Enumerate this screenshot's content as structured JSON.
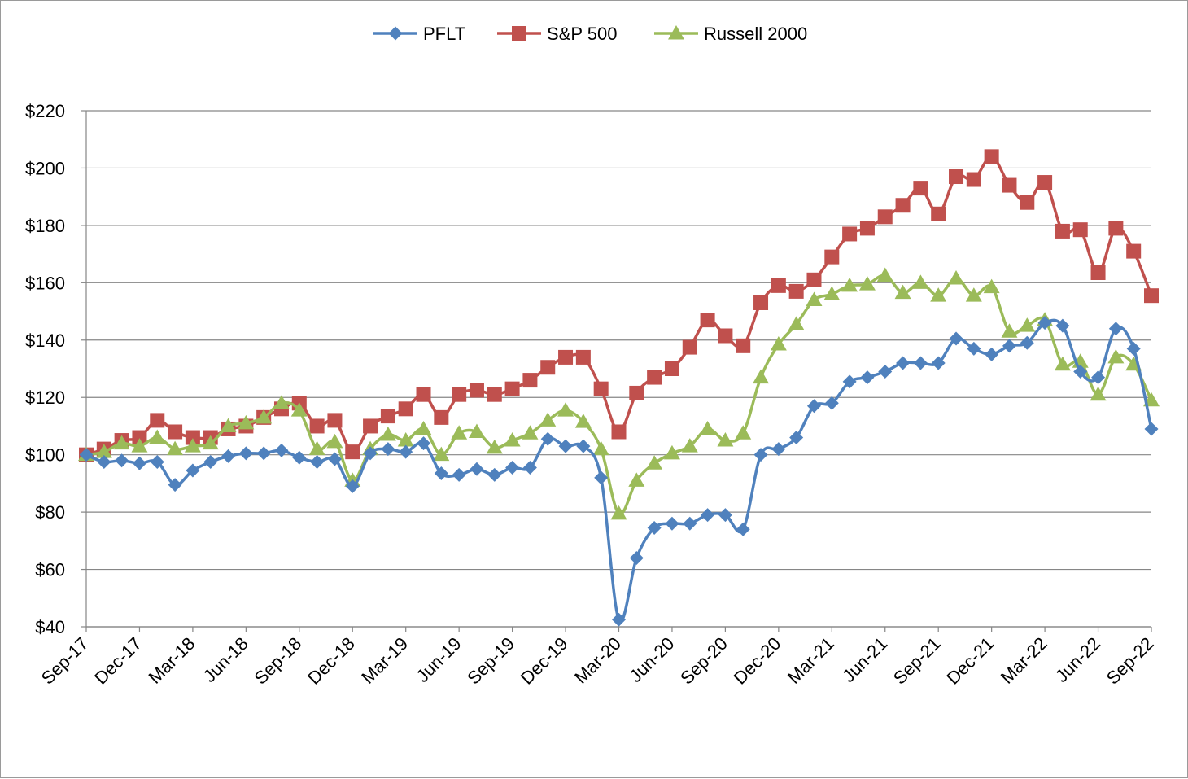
{
  "chart_data": {
    "type": "line",
    "title": "",
    "xlabel": "",
    "ylabel": "",
    "ylim": [
      40,
      220
    ],
    "y_ticks": [
      40,
      60,
      80,
      100,
      120,
      140,
      160,
      180,
      200,
      220
    ],
    "y_tick_labels": [
      "$40",
      "$60",
      "$80",
      "$100",
      "$120",
      "$140",
      "$160",
      "$180",
      "$200",
      "$220"
    ],
    "x_tick_labels": [
      "Sep-17",
      "Dec-17",
      "Mar-18",
      "Jun-18",
      "Sep-18",
      "Dec-18",
      "Mar-19",
      "Jun-19",
      "Sep-19",
      "Dec-19",
      "Mar-20",
      "Jun-20",
      "Sep-20",
      "Dec-20",
      "Mar-21",
      "Jun-21",
      "Sep-21",
      "Dec-21",
      "Mar-22",
      "Jun-22",
      "Sep-22"
    ],
    "grid": true,
    "legend_position": "top-center",
    "series": [
      {
        "name": "PFLT",
        "color": "#4F81BD",
        "marker": "diamond",
        "values": [
          100,
          97.5,
          98,
          97,
          97.5,
          89.5,
          94.5,
          97.5,
          99.5,
          100.5,
          100.5,
          101.5,
          99,
          97.5,
          98.5,
          89,
          100.5,
          102,
          101,
          104,
          93.5,
          93,
          95,
          93,
          95.5,
          95.5,
          105.5,
          103,
          103,
          92,
          42.5,
          64,
          74.5,
          76,
          76,
          79,
          79,
          74,
          100,
          102,
          106,
          117,
          118,
          125.5,
          127,
          129,
          132,
          132,
          132,
          140.5,
          137,
          135,
          138,
          139,
          146,
          145,
          129,
          127,
          144,
          137,
          109
        ]
      },
      {
        "name": "S&P 500",
        "color": "#C0504D",
        "marker": "square",
        "values": [
          100,
          102,
          105,
          106,
          112,
          108,
          106,
          106,
          109,
          110,
          113,
          116,
          118,
          110,
          112,
          101,
          110,
          113.5,
          116,
          121,
          113,
          121,
          122.5,
          121,
          123,
          126,
          130.5,
          134,
          134,
          123,
          108,
          121.5,
          127,
          130,
          137.5,
          147,
          141.5,
          138,
          153,
          159,
          157,
          161,
          169,
          177,
          179,
          183,
          187,
          193,
          184,
          197,
          196,
          204,
          194,
          188,
          195,
          178,
          178.5,
          163.5,
          179,
          171,
          155.5
        ]
      },
      {
        "name": "Russell 2000",
        "color": "#9BBB59",
        "marker": "triangle",
        "values": [
          100,
          101,
          104,
          103,
          106,
          102,
          103,
          104,
          110,
          111,
          113,
          118,
          115.5,
          102,
          104.5,
          91,
          102,
          107,
          105,
          109,
          100,
          107.5,
          108,
          102.5,
          105,
          107.5,
          112,
          115.5,
          111.5,
          102,
          79.5,
          91,
          97,
          100.5,
          103,
          109,
          105,
          107.5,
          127,
          138.5,
          145.5,
          154,
          156,
          159,
          159.5,
          162.5,
          156.5,
          160,
          155.5,
          161.5,
          155.5,
          158.5,
          143,
          145,
          147,
          131.5,
          132.5,
          121,
          134,
          131.5,
          119
        ]
      }
    ]
  }
}
